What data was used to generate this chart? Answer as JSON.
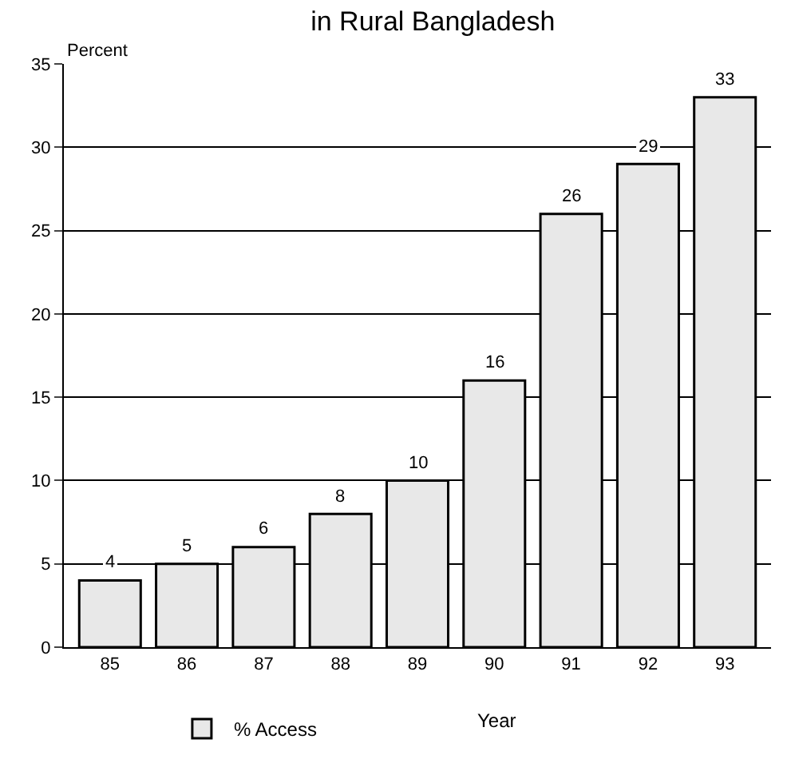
{
  "chart_data": {
    "type": "bar",
    "title": "in Rural Bangladesh",
    "xlabel": "Year",
    "ylabel": "Percent",
    "categories": [
      "85",
      "86",
      "87",
      "88",
      "89",
      "90",
      "91",
      "92",
      "93"
    ],
    "series": [
      {
        "name": "% Access",
        "color": "#e8e8e8",
        "values": [
          4,
          5,
          6,
          8,
          10,
          16,
          26,
          29,
          33
        ]
      }
    ],
    "ylim": [
      0,
      35
    ],
    "yticks": [
      0,
      5,
      10,
      15,
      20,
      25,
      30,
      35
    ],
    "grid": "y",
    "legend": "bottom",
    "data_labels": true
  }
}
